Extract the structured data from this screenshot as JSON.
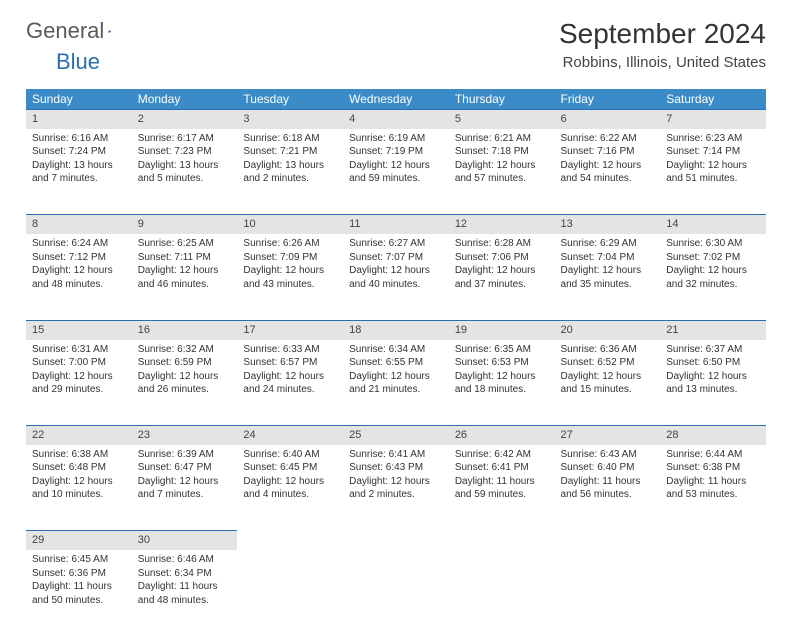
{
  "brand": {
    "part1": "General",
    "part2": "Blue"
  },
  "title": "September 2024",
  "location": "Robbins, Illinois, United States",
  "colors": {
    "header_bg": "#3b8bc9",
    "header_text": "#ffffff",
    "daynum_bg": "#e4e4e4",
    "divider": "#2c6fb0",
    "text": "#333333",
    "brand_gray": "#5a5a5a",
    "brand_blue": "#2c6fb0"
  },
  "weekdays": [
    "Sunday",
    "Monday",
    "Tuesday",
    "Wednesday",
    "Thursday",
    "Friday",
    "Saturday"
  ],
  "weeks": [
    [
      {
        "n": "1",
        "sr": "6:16 AM",
        "ss": "7:24 PM",
        "dl": "13 hours and 7 minutes."
      },
      {
        "n": "2",
        "sr": "6:17 AM",
        "ss": "7:23 PM",
        "dl": "13 hours and 5 minutes."
      },
      {
        "n": "3",
        "sr": "6:18 AM",
        "ss": "7:21 PM",
        "dl": "13 hours and 2 minutes."
      },
      {
        "n": "4",
        "sr": "6:19 AM",
        "ss": "7:19 PM",
        "dl": "12 hours and 59 minutes."
      },
      {
        "n": "5",
        "sr": "6:21 AM",
        "ss": "7:18 PM",
        "dl": "12 hours and 57 minutes."
      },
      {
        "n": "6",
        "sr": "6:22 AM",
        "ss": "7:16 PM",
        "dl": "12 hours and 54 minutes."
      },
      {
        "n": "7",
        "sr": "6:23 AM",
        "ss": "7:14 PM",
        "dl": "12 hours and 51 minutes."
      }
    ],
    [
      {
        "n": "8",
        "sr": "6:24 AM",
        "ss": "7:12 PM",
        "dl": "12 hours and 48 minutes."
      },
      {
        "n": "9",
        "sr": "6:25 AM",
        "ss": "7:11 PM",
        "dl": "12 hours and 46 minutes."
      },
      {
        "n": "10",
        "sr": "6:26 AM",
        "ss": "7:09 PM",
        "dl": "12 hours and 43 minutes."
      },
      {
        "n": "11",
        "sr": "6:27 AM",
        "ss": "7:07 PM",
        "dl": "12 hours and 40 minutes."
      },
      {
        "n": "12",
        "sr": "6:28 AM",
        "ss": "7:06 PM",
        "dl": "12 hours and 37 minutes."
      },
      {
        "n": "13",
        "sr": "6:29 AM",
        "ss": "7:04 PM",
        "dl": "12 hours and 35 minutes."
      },
      {
        "n": "14",
        "sr": "6:30 AM",
        "ss": "7:02 PM",
        "dl": "12 hours and 32 minutes."
      }
    ],
    [
      {
        "n": "15",
        "sr": "6:31 AM",
        "ss": "7:00 PM",
        "dl": "12 hours and 29 minutes."
      },
      {
        "n": "16",
        "sr": "6:32 AM",
        "ss": "6:59 PM",
        "dl": "12 hours and 26 minutes."
      },
      {
        "n": "17",
        "sr": "6:33 AM",
        "ss": "6:57 PM",
        "dl": "12 hours and 24 minutes."
      },
      {
        "n": "18",
        "sr": "6:34 AM",
        "ss": "6:55 PM",
        "dl": "12 hours and 21 minutes."
      },
      {
        "n": "19",
        "sr": "6:35 AM",
        "ss": "6:53 PM",
        "dl": "12 hours and 18 minutes."
      },
      {
        "n": "20",
        "sr": "6:36 AM",
        "ss": "6:52 PM",
        "dl": "12 hours and 15 minutes."
      },
      {
        "n": "21",
        "sr": "6:37 AM",
        "ss": "6:50 PM",
        "dl": "12 hours and 13 minutes."
      }
    ],
    [
      {
        "n": "22",
        "sr": "6:38 AM",
        "ss": "6:48 PM",
        "dl": "12 hours and 10 minutes."
      },
      {
        "n": "23",
        "sr": "6:39 AM",
        "ss": "6:47 PM",
        "dl": "12 hours and 7 minutes."
      },
      {
        "n": "24",
        "sr": "6:40 AM",
        "ss": "6:45 PM",
        "dl": "12 hours and 4 minutes."
      },
      {
        "n": "25",
        "sr": "6:41 AM",
        "ss": "6:43 PM",
        "dl": "12 hours and 2 minutes."
      },
      {
        "n": "26",
        "sr": "6:42 AM",
        "ss": "6:41 PM",
        "dl": "11 hours and 59 minutes."
      },
      {
        "n": "27",
        "sr": "6:43 AM",
        "ss": "6:40 PM",
        "dl": "11 hours and 56 minutes."
      },
      {
        "n": "28",
        "sr": "6:44 AM",
        "ss": "6:38 PM",
        "dl": "11 hours and 53 minutes."
      }
    ],
    [
      {
        "n": "29",
        "sr": "6:45 AM",
        "ss": "6:36 PM",
        "dl": "11 hours and 50 minutes."
      },
      {
        "n": "30",
        "sr": "6:46 AM",
        "ss": "6:34 PM",
        "dl": "11 hours and 48 minutes."
      },
      null,
      null,
      null,
      null,
      null
    ]
  ]
}
